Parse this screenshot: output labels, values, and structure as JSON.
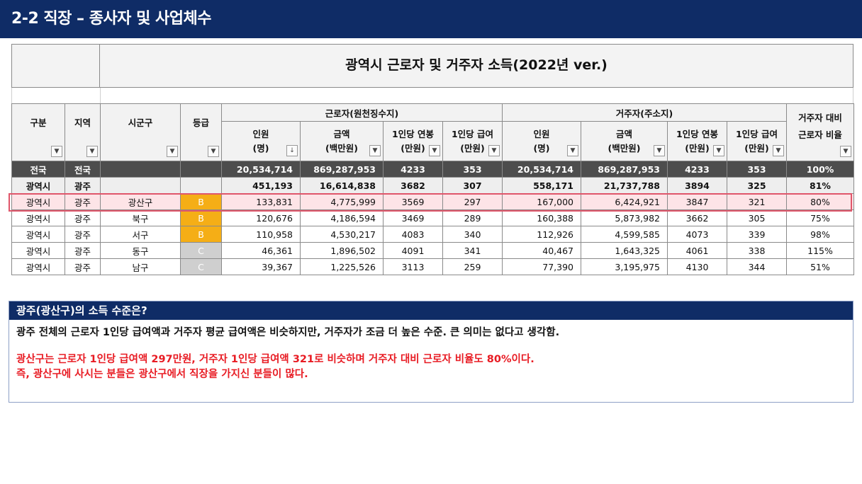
{
  "page_title": "2-2 직장 – 종사자 및 사업체수",
  "sheet_title": "광역시 근로자 및 거주자 소득(2022년 ver.)",
  "headers": {
    "gubun": "구분",
    "region": "지역",
    "district": "시군구",
    "grade": "등급",
    "worker_group": "근로자(원천징수지)",
    "resident_group": "거주자(주소지)",
    "ratio_line1": "거주자 대비",
    "ratio_line2": "근로자 비율",
    "people": "인원",
    "people_unit": "(명)",
    "amount": "금액",
    "amount_unit": "(백만원)",
    "annual": "1인당 연봉",
    "monthly": "1인당 급여",
    "manwon_unit": "(만원)"
  },
  "filter_icons": {
    "dropdown": "▼",
    "sorted_desc": "↓"
  },
  "rows": [
    {
      "gubun": "전국",
      "region": "전국",
      "district": "",
      "grade": "",
      "w_people": "20,534,714",
      "w_amount": "869,287,953",
      "w_annual": "4233",
      "w_monthly": "353",
      "r_people": "20,534,714",
      "r_amount": "869,287,953",
      "r_annual": "4233",
      "r_monthly": "353",
      "ratio": "100%"
    },
    {
      "gubun": "광역시",
      "region": "광주",
      "district": "",
      "grade": "",
      "w_people": "451,193",
      "w_amount": "16,614,838",
      "w_annual": "3682",
      "w_monthly": "307",
      "r_people": "558,171",
      "r_amount": "21,737,788",
      "r_annual": "3894",
      "r_monthly": "325",
      "ratio": "81%"
    },
    {
      "gubun": "광역시",
      "region": "광주",
      "district": "광산구",
      "grade": "B",
      "w_people": "133,831",
      "w_amount": "4,775,999",
      "w_annual": "3569",
      "w_monthly": "297",
      "r_people": "167,000",
      "r_amount": "6,424,921",
      "r_annual": "3847",
      "r_monthly": "321",
      "ratio": "80%"
    },
    {
      "gubun": "광역시",
      "region": "광주",
      "district": "북구",
      "grade": "B",
      "w_people": "120,676",
      "w_amount": "4,186,594",
      "w_annual": "3469",
      "w_monthly": "289",
      "r_people": "160,388",
      "r_amount": "5,873,982",
      "r_annual": "3662",
      "r_monthly": "305",
      "ratio": "75%"
    },
    {
      "gubun": "광역시",
      "region": "광주",
      "district": "서구",
      "grade": "B",
      "w_people": "110,958",
      "w_amount": "4,530,217",
      "w_annual": "4083",
      "w_monthly": "340",
      "r_people": "112,926",
      "r_amount": "4,599,585",
      "r_annual": "4073",
      "r_monthly": "339",
      "ratio": "98%"
    },
    {
      "gubun": "광역시",
      "region": "광주",
      "district": "동구",
      "grade": "C",
      "w_people": "46,361",
      "w_amount": "1,896,502",
      "w_annual": "4091",
      "w_monthly": "341",
      "r_people": "40,467",
      "r_amount": "1,643,325",
      "r_annual": "4061",
      "r_monthly": "338",
      "ratio": "115%"
    },
    {
      "gubun": "광역시",
      "region": "광주",
      "district": "남구",
      "grade": "C",
      "w_people": "39,367",
      "w_amount": "1,225,526",
      "w_annual": "3113",
      "w_monthly": "259",
      "r_people": "77,390",
      "r_amount": "3,195,975",
      "r_annual": "4130",
      "r_monthly": "344",
      "ratio": "51%"
    }
  ],
  "note": {
    "title": "광주(광산구)의 소득 수준은?",
    "line1": "광주 전체의 근로자 1인당 급여액과 거주자 평균 급여액은 비슷하지만, 거주자가 조금 더 높은 수준. 큰 의미는 없다고 생각함.",
    "red_line1": "광산구는 근로자 1인당 급여액 297만원,  거주자 1인당 급여액 321로 비슷하며 거주자 대비 근로자 비율도 80%이다.",
    "red_line2": "즉, 광산구에 사시는 분들은 광산구에서 직장을 가지신 분들이 많다."
  },
  "colors": {
    "header_navy": "#0f2c66",
    "grade_b": "#f5ae16",
    "grade_c": "#cfcfcf",
    "highlight_border": "#e0566a",
    "note_red": "#e81b23"
  }
}
